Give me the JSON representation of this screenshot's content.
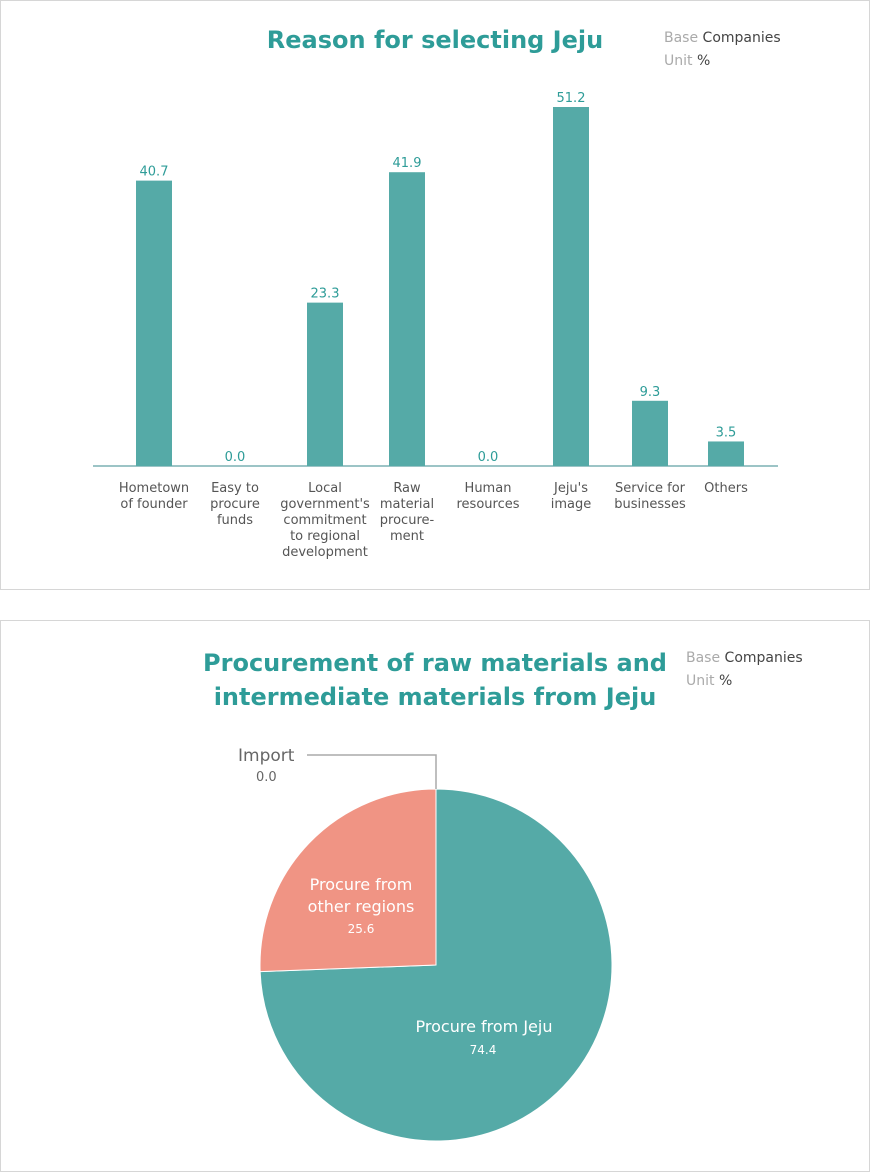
{
  "chart_data": [
    {
      "type": "bar",
      "title": "Reason for selecting Jeju",
      "base_label": "Base",
      "base_value": "Companies",
      "unit_label": "Unit",
      "unit_value": "%",
      "categories": [
        [
          "Hometown",
          "of founder"
        ],
        [
          "Easy to",
          "procure",
          "funds"
        ],
        [
          "Local",
          "government's",
          "commitment",
          "to regional",
          "development"
        ],
        [
          "Raw",
          "material",
          "procure-",
          "ment"
        ],
        [
          "Human",
          "resources"
        ],
        [
          "Jeju's",
          "image"
        ],
        [
          "Service for",
          "businesses"
        ],
        [
          "Others"
        ]
      ],
      "values": [
        40.7,
        0.0,
        23.3,
        41.9,
        0.0,
        51.2,
        9.3,
        3.5
      ],
      "value_labels": [
        "40.7",
        "0.0",
        "23.3",
        "41.9",
        "0.0",
        "51.2",
        "9.3",
        "3.5"
      ],
      "ylim": [
        0,
        51.2
      ],
      "grid": false,
      "color": "#55aaa7"
    },
    {
      "type": "pie",
      "title": "Procurement of raw materials and intermediate materials from Jeju",
      "title_lines": [
        "Procurement of raw materials and",
        "intermediate materials from Jeju"
      ],
      "base_label": "Base",
      "base_value": "Companies",
      "unit_label": "Unit",
      "unit_value": "%",
      "slices": [
        {
          "label": "Procure from Jeju",
          "value": 74.4,
          "value_label": "74.4",
          "color": "#55aaa7"
        },
        {
          "label": "Procure from other regions",
          "label_lines": [
            "Procure from",
            "other regions"
          ],
          "value": 25.6,
          "value_label": "25.6",
          "color": "#f09484"
        },
        {
          "label": "Import",
          "value": 0.0,
          "value_label": "0.0",
          "color": "#999999"
        }
      ]
    }
  ]
}
